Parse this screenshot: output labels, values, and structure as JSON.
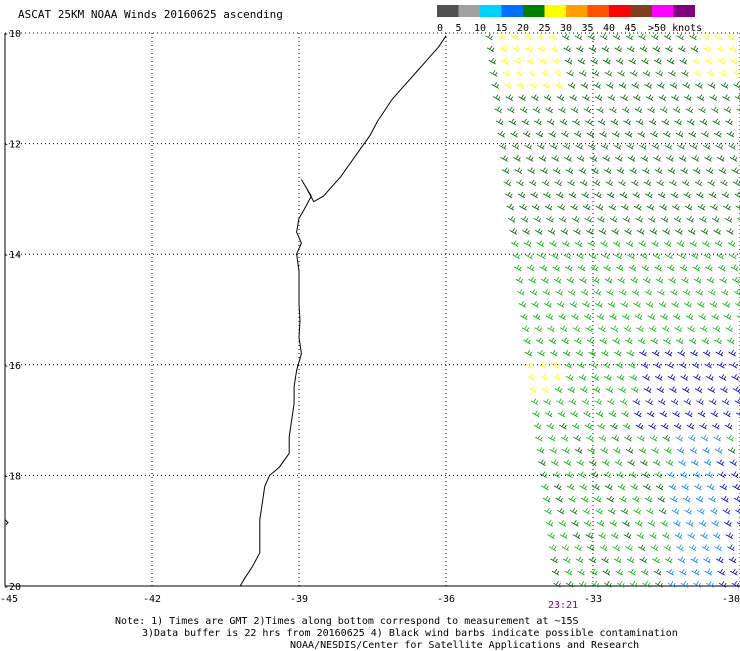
{
  "title": "ASCAT 25KM NOAA Winds 20160625 ascending",
  "legend": {
    "labels": [
      "0",
      "5",
      "10",
      "15",
      "20",
      "25",
      "30",
      "35",
      "40",
      "45",
      ">50 knots"
    ],
    "colors": [
      "#505050",
      "#a0a0a0",
      "#00d0ff",
      "#0070ff",
      "#008000",
      "#ffff00",
      "#ffa000",
      "#ff5000",
      "#ff0000",
      "#804020",
      "#ff00ff",
      "#800080"
    ]
  },
  "map": {
    "lat_labels": [
      "-10",
      "-12",
      "-14",
      "-16",
      "-18",
      "-20"
    ],
    "lon_labels": [
      "-45",
      "-42",
      "-39",
      "-36",
      "-33",
      "-30"
    ],
    "lat_range": [
      -20,
      -10
    ],
    "lon_range": [
      -45,
      -30
    ]
  },
  "pass_time": "23:21",
  "notes": {
    "line1": "Note: 1) Times are GMT 2)Times along bottom correspond to measurement at ~15S",
    "line2": "3)Data buffer is 22 hrs from 20160625 4) Black wind barbs indicate possible contamination",
    "line3": "NOAA/NESDIS/Center for Satellite Applications and Research"
  },
  "colors": {
    "coast": "#000000",
    "barb_green_dark": "#006400",
    "barb_green": "#00b000",
    "barb_yellow": "#ffff00",
    "barb_blue": "#0000c0",
    "barb_lightblue": "#0080ff"
  }
}
